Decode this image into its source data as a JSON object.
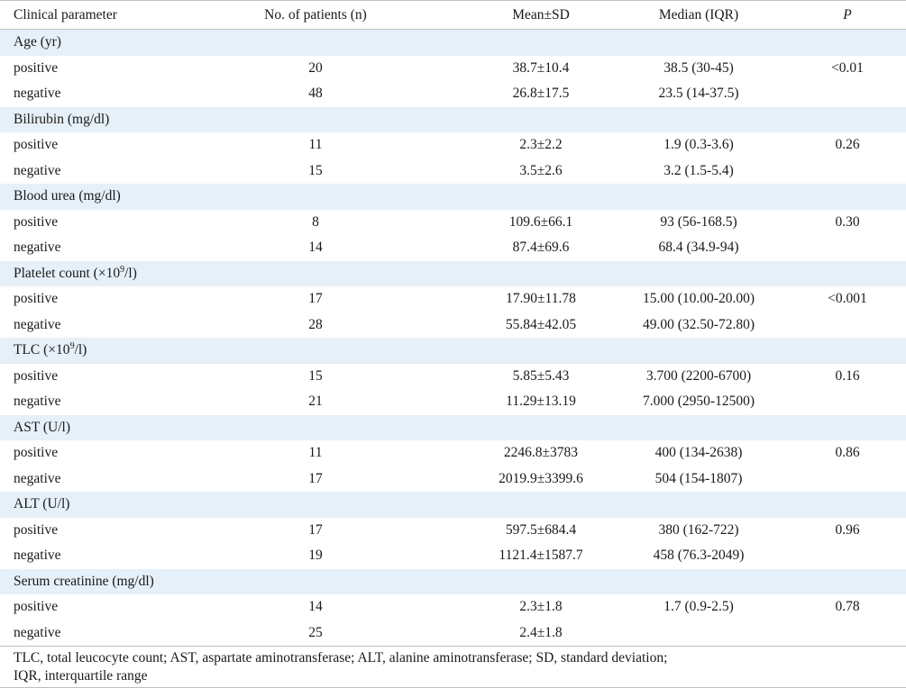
{
  "table": {
    "headers": [
      "Clinical parameter",
      "No. of patients (n)",
      "Mean±SD",
      "Median (IQR)",
      "P"
    ],
    "groups": [
      {
        "title": "Age (yr)",
        "rows": [
          {
            "label": "positive",
            "n": "20",
            "mean_sd": "38.7±10.4",
            "median_iqr": "38.5 (30-45)",
            "p": "<0.01"
          },
          {
            "label": "negative",
            "n": "48",
            "mean_sd": "26.8±17.5",
            "median_iqr": "23.5 (14-37.5)",
            "p": ""
          }
        ]
      },
      {
        "title": "Bilirubin (mg/dl)",
        "rows": [
          {
            "label": "positive",
            "n": "11",
            "mean_sd": "2.3±2.2",
            "median_iqr": "1.9 (0.3-3.6)",
            "p": "0.26"
          },
          {
            "label": "negative",
            "n": "15",
            "mean_sd": "3.5±2.6",
            "median_iqr": "3.2 (1.5-5.4)",
            "p": ""
          }
        ]
      },
      {
        "title": "Blood urea (mg/dl)",
        "rows": [
          {
            "label": "positive",
            "n": "8",
            "mean_sd": "109.6±66.1",
            "median_iqr": "93 (56-168.5)",
            "p": "0.30"
          },
          {
            "label": "negative",
            "n": "14",
            "mean_sd": "87.4±69.6",
            "median_iqr": "68.4 (34.9-94)",
            "p": ""
          }
        ]
      },
      {
        "title_prefix": "Platelet count (×10",
        "title_sup": "9",
        "title_suffix": "/l)",
        "rows": [
          {
            "label": "positive",
            "n": "17",
            "mean_sd": "17.90±11.78",
            "median_iqr": "15.00 (10.00-20.00)",
            "p": "<0.001"
          },
          {
            "label": "negative",
            "n": "28",
            "mean_sd": "55.84±42.05",
            "median_iqr": "49.00 (32.50-72.80)",
            "p": ""
          }
        ]
      },
      {
        "title_prefix": "TLC (×10",
        "title_sup": "9",
        "title_suffix": "/l)",
        "rows": [
          {
            "label": "positive",
            "n": "15",
            "mean_sd": "5.85±5.43",
            "median_iqr": "3.700 (2200-6700)",
            "p": "0.16"
          },
          {
            "label": "negative",
            "n": "21",
            "mean_sd": "11.29±13.19",
            "median_iqr": "7.000 (2950-12500)",
            "p": ""
          }
        ]
      },
      {
        "title": "AST (U/l)",
        "rows": [
          {
            "label": "positive",
            "n": "11",
            "mean_sd": "2246.8±3783",
            "median_iqr": "400 (134-2638)",
            "p": "0.86"
          },
          {
            "label": "negative",
            "n": "17",
            "mean_sd": "2019.9±3399.6",
            "median_iqr": "504 (154-1807)",
            "p": ""
          }
        ]
      },
      {
        "title": "ALT (U/l)",
        "rows": [
          {
            "label": "positive",
            "n": "17",
            "mean_sd": "597.5±684.4",
            "median_iqr": "380 (162-722)",
            "p": "0.96"
          },
          {
            "label": "negative",
            "n": "19",
            "mean_sd": "1121.4±1587.7",
            "median_iqr": "458 (76.3-2049)",
            "p": ""
          }
        ]
      },
      {
        "title": "Serum creatinine (mg/dl)",
        "rows": [
          {
            "label": "positive",
            "n": "14",
            "mean_sd": "2.3±1.8",
            "median_iqr": "1.7 (0.9-2.5)",
            "p": "0.78"
          },
          {
            "label": "negative",
            "n": "25",
            "mean_sd": "2.4±1.8",
            "median_iqr": "",
            "p": ""
          }
        ]
      }
    ],
    "footnote_line1": "TLC, total leucocyte count; AST, aspartate aminotransferase; ALT, alanine aminotransferase; SD, standard deviation;",
    "footnote_line2": "IQR, interquartile range"
  }
}
